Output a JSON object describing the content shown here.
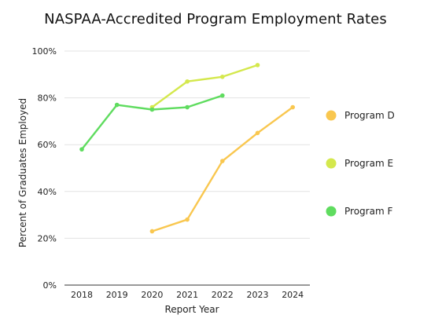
{
  "chart_data": {
    "type": "line",
    "title": "NASPAA-Accredited Program Employment Rates",
    "xlabel": "Report Year",
    "ylabel": "Percent of Graduates Employed",
    "categories": [
      "2018",
      "2019",
      "2020",
      "2021",
      "2022",
      "2023",
      "2024"
    ],
    "ylim": [
      0,
      100
    ],
    "yticks": [
      "0%",
      "20%",
      "40%",
      "60%",
      "80%",
      "100%"
    ],
    "ytick_values": [
      0,
      20,
      40,
      60,
      80,
      100
    ],
    "grid": true,
    "legend_position": "right",
    "series": [
      {
        "name": "Program D",
        "color": "#f9c74f",
        "values": [
          null,
          null,
          23,
          28,
          53,
          65,
          76
        ]
      },
      {
        "name": "Program E",
        "color": "#d4e84d",
        "values": [
          null,
          null,
          76,
          87,
          89,
          94,
          null
        ]
      },
      {
        "name": "Program F",
        "color": "#5fdc5f",
        "values": [
          58,
          77,
          75,
          76,
          81,
          null,
          null
        ]
      }
    ]
  }
}
